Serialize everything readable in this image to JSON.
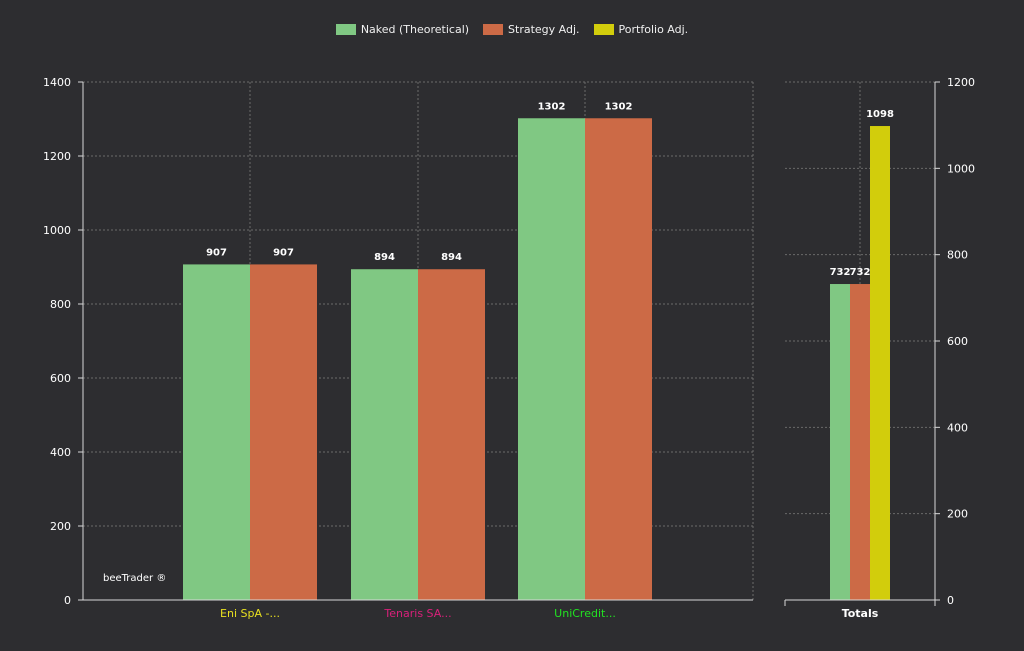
{
  "colors": {
    "background": "#2d2d30",
    "axis": "#d8d8d8",
    "grid": "#6a6a6a",
    "naked": "#80c883",
    "strategy": "#cc6a46",
    "portfolio": "#d2cd0c"
  },
  "watermark": "beeTrader ®",
  "chart_data": [
    {
      "type": "bar",
      "categories": [
        "Eni SpA -...",
        "Tenaris SA...",
        "UniCredit..."
      ],
      "category_colors": [
        "#e8e020",
        "#d8207a",
        "#22e022"
      ],
      "series": [
        {
          "name": "Naked (Theoretical)",
          "values": [
            907,
            894,
            1302
          ],
          "color": "#80c883",
          "labels": [
            "907",
            "894",
            "1302"
          ]
        },
        {
          "name": "Strategy Adj.",
          "values": [
            907,
            894,
            1302
          ],
          "color": "#cc6a46",
          "labels": [
            "907",
            "894",
            "1302"
          ]
        }
      ],
      "ylim": [
        0,
        1400
      ],
      "yticks": [
        "0",
        "200",
        "400",
        "600",
        "800",
        "1000",
        "1200",
        "1400"
      ],
      "grid": true,
      "legend": "top-center"
    },
    {
      "type": "bar",
      "categories": [
        "Totals"
      ],
      "series": [
        {
          "name": "Naked (Theoretical)",
          "values": [
            732
          ],
          "color": "#80c883",
          "labels": [
            "732"
          ]
        },
        {
          "name": "Strategy Adj.",
          "values": [
            732
          ],
          "color": "#cc6a46",
          "labels": [
            "732"
          ]
        },
        {
          "name": "Portfolio Adj.",
          "values": [
            1098
          ],
          "color": "#d2cd0c",
          "labels": [
            "1098"
          ]
        }
      ],
      "ylim": [
        0,
        1200
      ],
      "yticks": [
        "0",
        "200",
        "400",
        "600",
        "800",
        "1000",
        "1200"
      ],
      "grid": true
    }
  ]
}
